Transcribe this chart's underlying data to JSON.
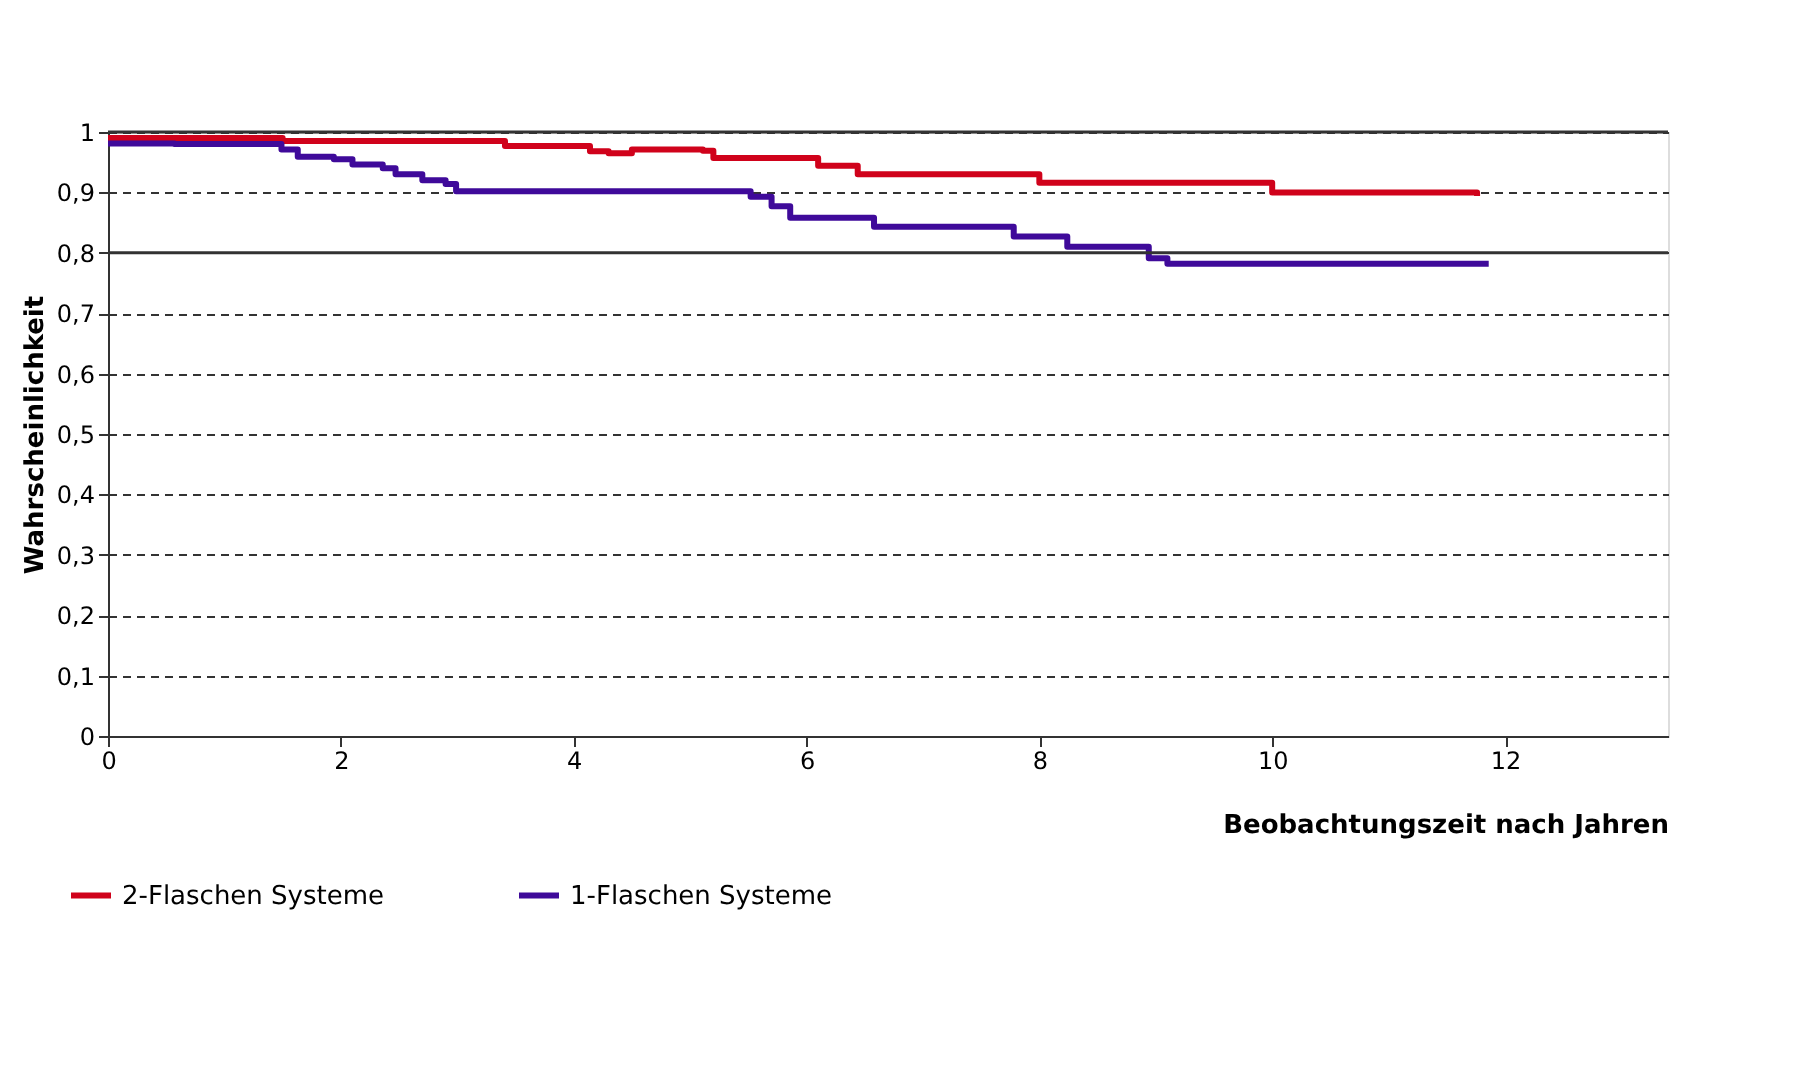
{
  "chart_data": {
    "type": "step",
    "xlabel": "Beobachtungszeit nach Jahren",
    "ylabel": "Wahrscheinlichkeit",
    "xlim": [
      0,
      13.4
    ],
    "xticks": [
      0,
      2,
      4,
      6,
      8,
      10,
      12
    ],
    "ylim": [
      0,
      1
    ],
    "yticks": [
      0,
      {
        "value": 0.1,
        "label": "0,1"
      },
      {
        "value": 0.2,
        "label": "0,2"
      },
      {
        "value": 0.3,
        "label": "0,3"
      },
      {
        "value": 0.4,
        "label": "0,4"
      },
      {
        "value": 0.5,
        "label": "0,5"
      },
      {
        "value": 0.6,
        "label": "0,6"
      },
      {
        "value": 0.7,
        "label": "0,7"
      },
      {
        "value": 0.8,
        "label": "0,8"
      },
      {
        "value": 0.9,
        "label": "0,9"
      },
      1
    ],
    "grid": "y",
    "legend": "bottom left",
    "line_style": "solid",
    "marker": "none",
    "ref_lines": [
      {
        "axis": "y",
        "value": 0.8,
        "label": null,
        "color": "#333333",
        "line_style": "solid"
      },
      {
        "axis": "y",
        "value": 1,
        "label": null,
        "color": "#333333",
        "line_style": "solid"
      }
    ],
    "series": [
      {
        "name": "2-Flaschen Systeme",
        "color": "#d0021b",
        "x": [
          0,
          1.5,
          3.41,
          4.14,
          4.3,
          4.5,
          5.11,
          5.2,
          6.1,
          6.44,
          8.0,
          10.0,
          11.76
        ],
        "values": [
          0.99,
          0.985,
          0.977,
          0.968,
          0.965,
          0.971,
          0.969,
          0.957,
          0.944,
          0.93,
          0.916,
          0.9,
          0.894
        ]
      },
      {
        "name": "1-Flaschen Systeme",
        "color": "#3f0a9a",
        "x": [
          0,
          0.57,
          1.49,
          1.63,
          1.94,
          2.1,
          2.36,
          2.47,
          2.7,
          2.9,
          2.99,
          5.52,
          5.7,
          5.86,
          6.58,
          7.78,
          8.24,
          8.94,
          9.1,
          11.86
        ],
        "values": [
          0.981,
          0.98,
          0.971,
          0.959,
          0.955,
          0.946,
          0.94,
          0.93,
          0.92,
          0.914,
          0.902,
          0.893,
          0.877,
          0.858,
          0.843,
          0.827,
          0.81,
          0.791,
          0.782,
          0.782
        ]
      }
    ]
  }
}
